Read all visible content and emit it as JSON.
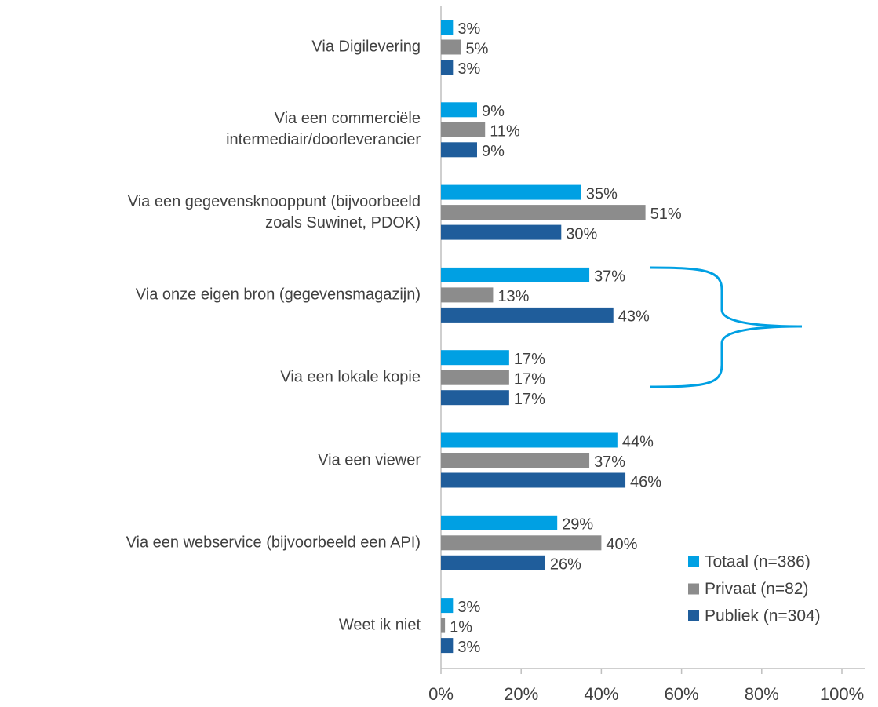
{
  "chart_data": {
    "type": "bar",
    "orientation": "horizontal",
    "categories": [
      "Via Digilevering",
      "Via een commerciële\nintermediair/doorleverancier",
      "Via een gegevensknooppunt (bijvoorbeeld\nzoals Suwinet, PDOK)",
      "Via onze eigen bron (gegevensmagazijn)",
      "Via een lokale kopie",
      "Via een viewer",
      "Via een webservice (bijvoorbeeld een API)",
      "Weet ik niet"
    ],
    "series": [
      {
        "name": "Totaal (n=386)",
        "color": "#00a0e3",
        "values": [
          3,
          9,
          35,
          37,
          17,
          44,
          29,
          3
        ],
        "value_labels": [
          "3%",
          "9%",
          "35%",
          "37%",
          "17%",
          "44%",
          "29%",
          "3%"
        ]
      },
      {
        "name": "Privaat (n=82)",
        "color": "#8c8c8c",
        "values": [
          5,
          11,
          51,
          13,
          17,
          37,
          40,
          1
        ],
        "value_labels": [
          "5%",
          "11%",
          "51%",
          "13%",
          "17%",
          "37%",
          "40%",
          "1%"
        ]
      },
      {
        "name": "Publiek (n=304)",
        "color": "#1f5d9b",
        "values": [
          3,
          9,
          30,
          43,
          17,
          46,
          26,
          3
        ],
        "value_labels": [
          "3%",
          "9%",
          "30%",
          "43%",
          "17%",
          "46%",
          "26%",
          "3%"
        ]
      }
    ],
    "xlim": [
      0,
      100
    ],
    "xticks": [
      {
        "value": 0,
        "label": "0%"
      },
      {
        "value": 20,
        "label": "20%"
      },
      {
        "value": 40,
        "label": "40%"
      },
      {
        "value": 60,
        "label": "60%"
      },
      {
        "value": 80,
        "label": "80%"
      },
      {
        "value": 100,
        "label": "100%"
      }
    ],
    "grid": false,
    "legend": "lower right"
  }
}
